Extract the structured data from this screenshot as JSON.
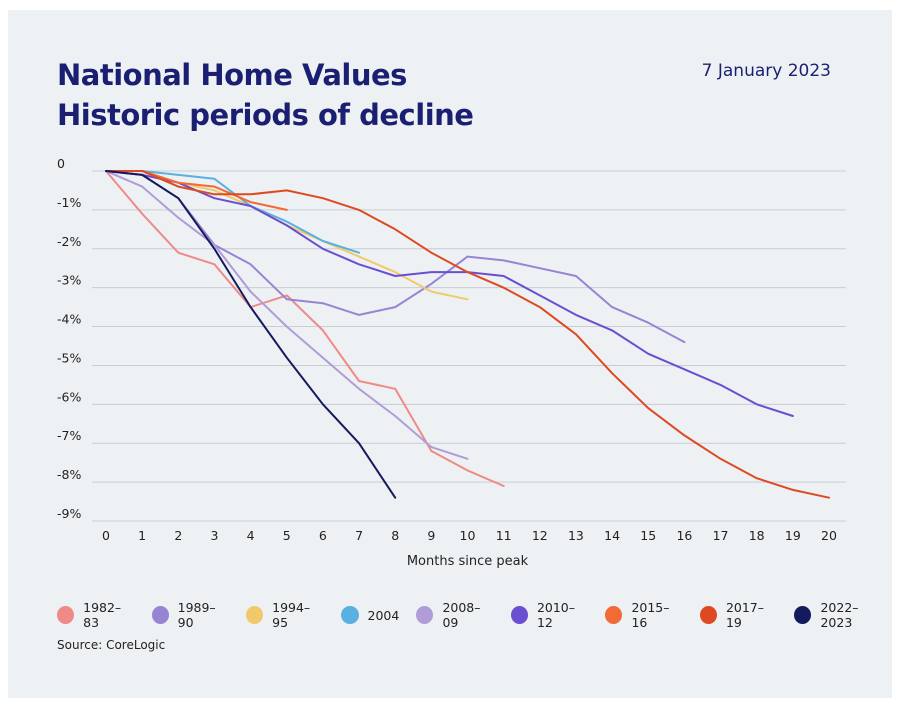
{
  "header": {
    "title_line1": "National Home Values",
    "title_line2": "Historic periods of decline",
    "date": "7 January 2023"
  },
  "source": "Source: CoreLogic",
  "chart_data": {
    "type": "line",
    "xlabel": "Months since peak",
    "ylabel": "",
    "x_ticks": [
      0,
      1,
      2,
      3,
      4,
      5,
      6,
      7,
      8,
      9,
      10,
      11,
      12,
      13,
      14,
      15,
      16,
      17,
      18,
      19,
      20
    ],
    "y_ticks": [
      0,
      -1,
      -2,
      -3,
      -4,
      -5,
      -6,
      -7,
      -8,
      -9
    ],
    "y_tick_labels": [
      "0",
      "-1%",
      "-2%",
      "-3%",
      "-4%",
      "-5%",
      "-6%",
      "-7%",
      "-8%",
      "-9%"
    ],
    "xlim": [
      0,
      20
    ],
    "ylim": [
      -9,
      0
    ],
    "grid": "horizontal",
    "legend_position": "bottom",
    "series": [
      {
        "name": "1982–83",
        "color": "#f08a86",
        "values": [
          0,
          -1.1,
          -2.1,
          -2.4,
          -3.5,
          -3.2,
          -4.1,
          -5.4,
          -5.6,
          -7.2,
          -7.7,
          -8.1
        ]
      },
      {
        "name": "1989–90",
        "color": "#9784d3",
        "values": [
          0,
          -0.1,
          -0.7,
          -1.9,
          -2.4,
          -3.3,
          -3.4,
          -3.7,
          -3.5,
          -2.9,
          -2.2,
          -2.3,
          -2.5,
          -2.7,
          -3.5,
          -3.9,
          -4.4
        ]
      },
      {
        "name": "1994–95",
        "color": "#f2c96a",
        "values": [
          0,
          0,
          -0.3,
          -0.5,
          -0.9,
          -1.4,
          -1.8,
          -2.2,
          -2.6,
          -3.1,
          -3.3
        ]
      },
      {
        "name": "2004",
        "color": "#5ab0e0",
        "values": [
          0,
          0,
          -0.1,
          -0.2,
          -0.9,
          -1.3,
          -1.8,
          -2.1
        ]
      },
      {
        "name": "2008–09",
        "color": "#b09cd6",
        "values": [
          0,
          -0.4,
          -1.2,
          -1.9,
          -3.1,
          -4.0,
          -4.8,
          -5.6,
          -6.3,
          -7.1,
          -7.4
        ]
      },
      {
        "name": "2010–12",
        "color": "#6a4fd0",
        "values": [
          0,
          -0.1,
          -0.3,
          -0.7,
          -0.9,
          -1.4,
          -2.0,
          -2.4,
          -2.7,
          -2.6,
          -2.6,
          -2.7,
          -3.2,
          -3.7,
          -4.1,
          -4.7,
          -5.1,
          -5.5,
          -6.0,
          -6.3
        ]
      },
      {
        "name": "2015–16",
        "color": "#f26a35",
        "values": [
          0,
          0,
          -0.3,
          -0.4,
          -0.8,
          -1.0
        ]
      },
      {
        "name": "2017–19",
        "color": "#dd4a22",
        "values": [
          0,
          0,
          -0.4,
          -0.6,
          -0.6,
          -0.5,
          -0.7,
          -1.0,
          -1.5,
          -2.1,
          -2.6,
          -3.0,
          -3.5,
          -4.2,
          -5.2,
          -6.1,
          -6.8,
          -7.4,
          -7.9,
          -8.2,
          -8.4
        ]
      },
      {
        "name": "2022–2023",
        "color": "#141a5e",
        "values": [
          0,
          -0.1,
          -0.7,
          -2.0,
          -3.5,
          -4.8,
          -6.0,
          -7.0,
          -8.4
        ]
      }
    ]
  }
}
